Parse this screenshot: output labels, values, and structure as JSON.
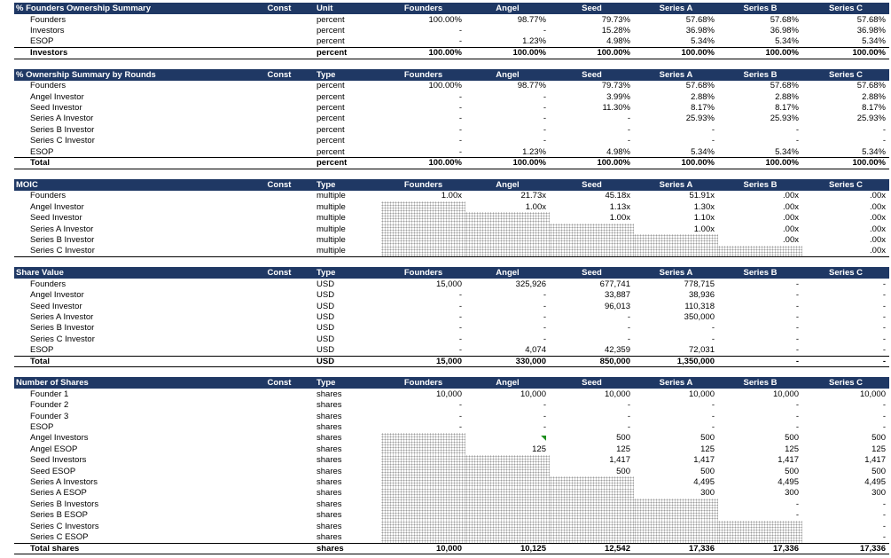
{
  "colors": {
    "header_bg": "#1F3864",
    "header_text": "#FFFFFF",
    "text": "#000000",
    "hatch_dot": "#9E9E9E",
    "flag_green": "#1E8E1E"
  },
  "columns": [
    "Founders",
    "Angel",
    "Seed",
    "Series A",
    "Series B",
    "Series C"
  ],
  "tables": [
    {
      "id": "founders-ownership-summary",
      "title": "% Founders Ownership Summary",
      "const_header": "Const",
      "type_header": "Unit",
      "rows": [
        {
          "label": "Founders",
          "type": "percent",
          "values": [
            "100.00%",
            "98.77%",
            "79.73%",
            "57.68%",
            "57.68%",
            "57.68%"
          ]
        },
        {
          "label": "Investors",
          "type": "percent",
          "values": [
            "-",
            "-",
            "15.28%",
            "36.98%",
            "36.98%",
            "36.98%"
          ]
        },
        {
          "label": "ESOP",
          "type": "percent",
          "values": [
            "-",
            "1.23%",
            "4.98%",
            "5.34%",
            "5.34%",
            "5.34%"
          ]
        },
        {
          "label": "Investors",
          "type": "percent",
          "total": true,
          "values": [
            "100.00%",
            "100.00%",
            "100.00%",
            "100.00%",
            "100.00%",
            "100.00%"
          ]
        }
      ]
    },
    {
      "id": "ownership-summary-by-rounds",
      "title": "% Ownership Summary by Rounds",
      "const_header": "Const",
      "type_header": "Type",
      "rows": [
        {
          "label": "Founders",
          "type": "percent",
          "values": [
            "100.00%",
            "98.77%",
            "79.73%",
            "57.68%",
            "57.68%",
            "57.68%"
          ]
        },
        {
          "label": "Angel Investor",
          "type": "percent",
          "values": [
            "-",
            "-",
            "3.99%",
            "2.88%",
            "2.88%",
            "2.88%"
          ]
        },
        {
          "label": "Seed Investor",
          "type": "percent",
          "values": [
            "-",
            "-",
            "11.30%",
            "8.17%",
            "8.17%",
            "8.17%"
          ]
        },
        {
          "label": "Series A Investor",
          "type": "percent",
          "values": [
            "-",
            "-",
            "-",
            "25.93%",
            "25.93%",
            "25.93%"
          ]
        },
        {
          "label": "Series B Investor",
          "type": "percent",
          "values": [
            "-",
            "-",
            "-",
            "-",
            "-",
            "-"
          ]
        },
        {
          "label": "Series C Investor",
          "type": "percent",
          "values": [
            "-",
            "-",
            "-",
            "-",
            "-",
            "-"
          ]
        },
        {
          "label": "ESOP",
          "type": "percent",
          "values": [
            "-",
            "1.23%",
            "4.98%",
            "5.34%",
            "5.34%",
            "5.34%"
          ]
        },
        {
          "label": "Total",
          "type": "percent",
          "total": true,
          "values": [
            "100.00%",
            "100.00%",
            "100.00%",
            "100.00%",
            "100.00%",
            "100.00%"
          ]
        }
      ]
    },
    {
      "id": "moic",
      "title": "MOIC",
      "const_header": "Const",
      "type_header": "Type",
      "rows": [
        {
          "label": "Founders",
          "type": "multiple",
          "values": [
            "1.00x",
            "21.73x",
            "45.18x",
            "51.91x",
            ".00x",
            ".00x"
          ]
        },
        {
          "label": "Angel Investor",
          "type": "multiple",
          "values": [
            {
              "hatch": true
            },
            "1.00x",
            "1.13x",
            "1.30x",
            ".00x",
            ".00x"
          ]
        },
        {
          "label": "Seed Investor",
          "type": "multiple",
          "values": [
            {
              "hatch": true
            },
            {
              "hatch": true
            },
            "1.00x",
            "1.10x",
            ".00x",
            ".00x"
          ]
        },
        {
          "label": "Series A Investor",
          "type": "multiple",
          "values": [
            {
              "hatch": true
            },
            {
              "hatch": true
            },
            {
              "hatch": true
            },
            "1.00x",
            ".00x",
            ".00x"
          ]
        },
        {
          "label": "Series B Investor",
          "type": "multiple",
          "values": [
            {
              "hatch": true
            },
            {
              "hatch": true
            },
            {
              "hatch": true
            },
            {
              "hatch": true
            },
            ".00x",
            ".00x"
          ]
        },
        {
          "label": "Series C Investor",
          "type": "multiple",
          "values": [
            {
              "hatch": true
            },
            {
              "hatch": true
            },
            {
              "hatch": true
            },
            {
              "hatch": true
            },
            {
              "hatch": true
            },
            ".00x"
          ]
        }
      ]
    },
    {
      "id": "share-value",
      "title": "Share Value",
      "const_header": "Const",
      "type_header": "Type",
      "rows": [
        {
          "label": "Founders",
          "type": "USD",
          "values": [
            "15,000",
            "325,926",
            "677,741",
            "778,715",
            "-",
            "-"
          ]
        },
        {
          "label": "Angel Investor",
          "type": "USD",
          "values": [
            "-",
            "-",
            "33,887",
            "38,936",
            "-",
            "-"
          ]
        },
        {
          "label": "Seed Investor",
          "type": "USD",
          "values": [
            "-",
            "-",
            "96,013",
            "110,318",
            "-",
            "-"
          ]
        },
        {
          "label": "Series A Investor",
          "type": "USD",
          "values": [
            "-",
            "-",
            "-",
            "350,000",
            "-",
            "-"
          ]
        },
        {
          "label": "Series B Investor",
          "type": "USD",
          "values": [
            "-",
            "-",
            "-",
            "-",
            "-",
            "-"
          ]
        },
        {
          "label": "Series C Investor",
          "type": "USD",
          "values": [
            "-",
            "-",
            "-",
            "-",
            "-",
            "-"
          ]
        },
        {
          "label": "ESOP",
          "type": "USD",
          "values": [
            "-",
            "4,074",
            "42,359",
            "72,031",
            "-",
            "-"
          ]
        },
        {
          "label": "Total",
          "type": "USD",
          "total": true,
          "values": [
            "15,000",
            "330,000",
            "850,000",
            "1,350,000",
            "-",
            "-"
          ]
        }
      ]
    },
    {
      "id": "number-of-shares",
      "title": "Number of Shares",
      "const_header": "Const",
      "type_header": "Type",
      "rows": [
        {
          "label": "Founder 1",
          "type": "shares",
          "values": [
            "10,000",
            "10,000",
            "10,000",
            "10,000",
            "10,000",
            "10,000"
          ]
        },
        {
          "label": "Founder 2",
          "type": "shares",
          "values": [
            "-",
            "-",
            "-",
            "-",
            "-",
            "-"
          ]
        },
        {
          "label": "Founder 3",
          "type": "shares",
          "values": [
            "-",
            "-",
            "-",
            "-",
            "-",
            "-"
          ]
        },
        {
          "label": "ESOP",
          "type": "shares",
          "values": [
            "-",
            "-",
            "-",
            "-",
            "-",
            "-"
          ]
        },
        {
          "label": "Angel Investors",
          "type": "shares",
          "values": [
            {
              "hatch": true
            },
            {
              "flag": true
            },
            "500",
            "500",
            "500",
            "500"
          ]
        },
        {
          "label": "Angel ESOP",
          "type": "shares",
          "values": [
            {
              "hatch": true
            },
            "125",
            "125",
            "125",
            "125",
            "125"
          ]
        },
        {
          "label": "Seed Investors",
          "type": "shares",
          "values": [
            {
              "hatch": true
            },
            {
              "hatch": true
            },
            "1,417",
            "1,417",
            "1,417",
            "1,417"
          ]
        },
        {
          "label": "Seed ESOP",
          "type": "shares",
          "values": [
            {
              "hatch": true
            },
            {
              "hatch": true
            },
            "500",
            "500",
            "500",
            "500"
          ]
        },
        {
          "label": "Series A Investors",
          "type": "shares",
          "values": [
            {
              "hatch": true
            },
            {
              "hatch": true
            },
            {
              "hatch": true
            },
            "4,495",
            "4,495",
            "4,495"
          ]
        },
        {
          "label": "Series A ESOP",
          "type": "shares",
          "values": [
            {
              "hatch": true
            },
            {
              "hatch": true
            },
            {
              "hatch": true
            },
            "300",
            "300",
            "300"
          ]
        },
        {
          "label": "Series B Investors",
          "type": "shares",
          "values": [
            {
              "hatch": true
            },
            {
              "hatch": true
            },
            {
              "hatch": true
            },
            {
              "hatch": true
            },
            "-",
            "-"
          ]
        },
        {
          "label": "Series B ESOP",
          "type": "shares",
          "values": [
            {
              "hatch": true
            },
            {
              "hatch": true
            },
            {
              "hatch": true
            },
            {
              "hatch": true
            },
            "-",
            "-"
          ]
        },
        {
          "label": "Series C Investors",
          "type": "shares",
          "values": [
            {
              "hatch": true
            },
            {
              "hatch": true
            },
            {
              "hatch": true
            },
            {
              "hatch": true
            },
            {
              "hatch": true
            },
            "-"
          ]
        },
        {
          "label": "Series C ESOP",
          "type": "shares",
          "values": [
            {
              "hatch": true
            },
            {
              "hatch": true
            },
            {
              "hatch": true
            },
            {
              "hatch": true
            },
            {
              "hatch": true
            },
            "-"
          ]
        },
        {
          "label": "Total shares",
          "type": "shares",
          "total": true,
          "values": [
            "10,000",
            "10,125",
            "12,542",
            "17,336",
            "17,336",
            "17,336"
          ]
        }
      ]
    }
  ]
}
